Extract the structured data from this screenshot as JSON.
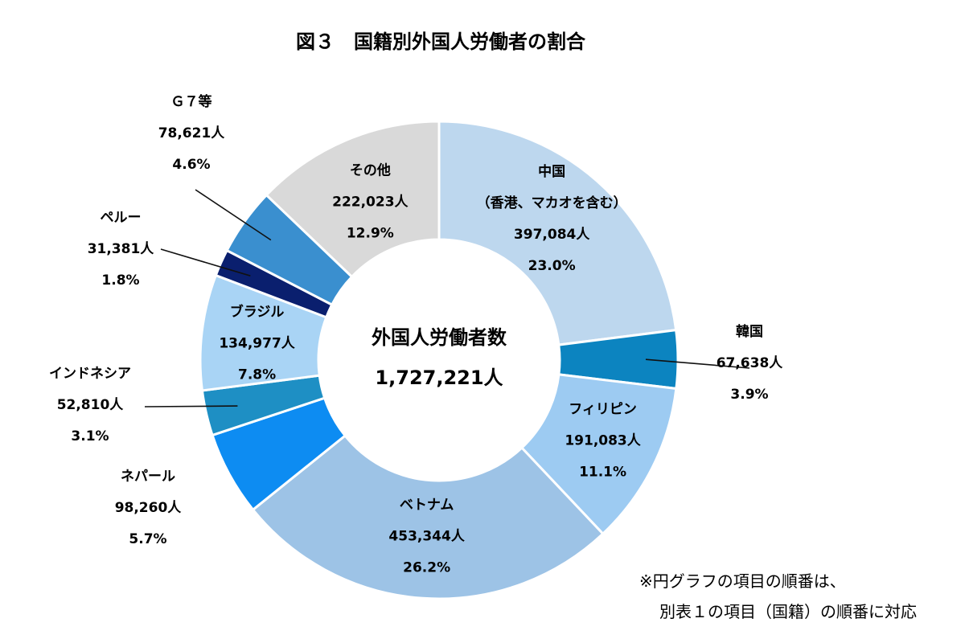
{
  "chart_data": {
    "type": "pie",
    "title": "図３　国籍別外国人労働者の割合",
    "center": {
      "label": "外国人労働者数",
      "value": "1,727,221人"
    },
    "total": 1727221,
    "slices": [
      {
        "name": "中国",
        "name2": "（香港、マカオを含む）",
        "value": 397084,
        "value_label": "397,084人",
        "percent": 23.0,
        "percent_label": "23.0%",
        "color": "#bdd7ee"
      },
      {
        "name": "韓国",
        "value": 67638,
        "value_label": "67,638人",
        "percent": 3.9,
        "percent_label": "3.9%",
        "color": "#0c84c0"
      },
      {
        "name": "フィリピン",
        "value": 191083,
        "value_label": "191,083人",
        "percent": 11.1,
        "percent_label": "11.1%",
        "color": "#9dcbf2"
      },
      {
        "name": "ベトナム",
        "value": 453344,
        "value_label": "453,344人",
        "percent": 26.2,
        "percent_label": "26.2%",
        "color": "#9dc3e6"
      },
      {
        "name": "ネパール",
        "value": 98260,
        "value_label": "98,260人",
        "percent": 5.7,
        "percent_label": "5.7%",
        "color": "#0d8cf2"
      },
      {
        "name": "インドネシア",
        "value": 52810,
        "value_label": "52,810人",
        "percent": 3.1,
        "percent_label": "3.1%",
        "color": "#1e8fc4"
      },
      {
        "name": "ブラジル",
        "value": 134977,
        "value_label": "134,977人",
        "percent": 7.8,
        "percent_label": "7.8%",
        "color": "#a9d4f5"
      },
      {
        "name": "ペルー",
        "value": 31381,
        "value_label": "31,381人",
        "percent": 1.8,
        "percent_label": "1.8%",
        "color": "#0a1f6e"
      },
      {
        "name": "Ｇ７等",
        "value": 78621,
        "value_label": "78,621人",
        "percent": 4.6,
        "percent_label": "4.6%",
        "color": "#3a8fcf"
      },
      {
        "name": "その他",
        "value": 222023,
        "value_label": "222,023人",
        "percent": 12.9,
        "percent_label": "12.9%",
        "color": "#d9d9d9"
      }
    ]
  },
  "note": {
    "line1": "※円グラフの項目の順番は、",
    "line2": "別表１の項目（国籍）の順番に対応"
  }
}
